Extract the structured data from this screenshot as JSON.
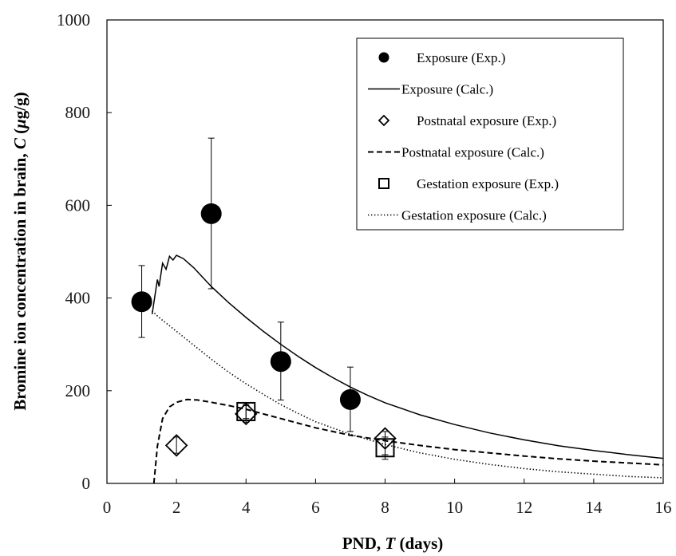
{
  "chart_data": {
    "type": "scatter",
    "xlabel": {
      "prefix": "PND, ",
      "var": "T",
      "suffix": " (days)"
    },
    "ylabel": {
      "prefix": "Bromine ion concentration in brain, ",
      "var": "C",
      "unit_open": " (",
      "unit_mu": "μ",
      "unit_rest": "g/g)"
    },
    "xlim": [
      0,
      16
    ],
    "ylim": [
      0,
      1000
    ],
    "x_ticks": [
      "0",
      "2",
      "4",
      "6",
      "8",
      "10",
      "12",
      "14",
      "16"
    ],
    "y_ticks": [
      "0",
      "200",
      "400",
      "600",
      "800",
      "1000"
    ],
    "x_tick_values": [
      0,
      2,
      4,
      6,
      8,
      10,
      12,
      14,
      16
    ],
    "y_tick_values": [
      0,
      200,
      400,
      600,
      800,
      1000
    ],
    "grid": false,
    "legend_position": "top-right",
    "series": [
      {
        "name": "Exposure (Exp.)",
        "kind": "points",
        "marker": "filled-circle",
        "points": [
          {
            "x": 1,
            "y": 392,
            "err_low": 315,
            "err_high": 470
          },
          {
            "x": 3,
            "y": 582,
            "err_low": 420,
            "err_high": 745
          },
          {
            "x": 5,
            "y": 263,
            "err_low": 180,
            "err_high": 348
          },
          {
            "x": 7,
            "y": 181,
            "err_low": 112,
            "err_high": 251
          }
        ]
      },
      {
        "name": "Exposure (Calc.)",
        "kind": "line",
        "style": "solid",
        "points": [
          [
            1.3,
            365
          ],
          [
            1.45,
            440
          ],
          [
            1.5,
            425
          ],
          [
            1.6,
            475
          ],
          [
            1.7,
            462
          ],
          [
            1.8,
            490
          ],
          [
            1.9,
            482
          ],
          [
            2.0,
            492
          ],
          [
            2.2,
            485
          ],
          [
            2.5,
            465
          ],
          [
            3,
            425
          ],
          [
            3.5,
            390
          ],
          [
            4,
            358
          ],
          [
            4.5,
            328
          ],
          [
            5,
            300
          ],
          [
            5.5,
            274
          ],
          [
            6,
            250
          ],
          [
            6.5,
            228
          ],
          [
            7,
            208
          ],
          [
            7.5,
            190
          ],
          [
            8,
            174
          ],
          [
            9,
            148
          ],
          [
            10,
            127
          ],
          [
            11,
            109
          ],
          [
            12,
            94
          ],
          [
            13,
            81
          ],
          [
            14,
            71
          ],
          [
            15,
            62
          ],
          [
            16,
            54
          ]
        ]
      },
      {
        "name": "Postnatal exposure (Exp.)",
        "kind": "points",
        "marker": "open-diamond",
        "points": [
          {
            "x": 2,
            "y": 82,
            "err_low": 65,
            "err_high": 100
          },
          {
            "x": 4,
            "y": 150,
            "err_low": 132,
            "err_high": 168
          },
          {
            "x": 8,
            "y": 97,
            "err_low": 62,
            "err_high": 112
          }
        ]
      },
      {
        "name": "Postnatal exposure (Calc.)",
        "kind": "line",
        "style": "dashed",
        "points": [
          [
            1.35,
            0
          ],
          [
            1.45,
            80
          ],
          [
            1.6,
            140
          ],
          [
            1.8,
            165
          ],
          [
            2.0,
            175
          ],
          [
            2.3,
            181
          ],
          [
            2.6,
            180
          ],
          [
            3,
            175
          ],
          [
            3.5,
            168
          ],
          [
            4,
            160
          ],
          [
            4.5,
            150
          ],
          [
            5,
            140
          ],
          [
            5.5,
            130
          ],
          [
            6,
            120
          ],
          [
            7,
            104
          ],
          [
            8,
            92
          ],
          [
            9,
            82
          ],
          [
            10,
            73
          ],
          [
            11,
            66
          ],
          [
            12,
            59
          ],
          [
            13,
            53
          ],
          [
            14,
            48
          ],
          [
            15,
            44
          ],
          [
            16,
            40
          ]
        ]
      },
      {
        "name": "Gestation exposure (Exp.)",
        "kind": "points",
        "marker": "open-square",
        "points": [
          {
            "x": 4,
            "y": 155,
            "err_low": 140,
            "err_high": 170
          },
          {
            "x": 8,
            "y": 77,
            "err_low": 52,
            "err_high": 100
          }
        ]
      },
      {
        "name": "Gestation exposure (Calc.)",
        "kind": "line",
        "style": "dotted",
        "points": [
          [
            1.3,
            372
          ],
          [
            1.5,
            358
          ],
          [
            2,
            328
          ],
          [
            2.5,
            298
          ],
          [
            3,
            268
          ],
          [
            3.5,
            240
          ],
          [
            4,
            215
          ],
          [
            4.5,
            192
          ],
          [
            5,
            170
          ],
          [
            5.5,
            151
          ],
          [
            6,
            133
          ],
          [
            7,
            106
          ],
          [
            8,
            84
          ],
          [
            9,
            66
          ],
          [
            10,
            52
          ],
          [
            11,
            41
          ],
          [
            12,
            32
          ],
          [
            13,
            25
          ],
          [
            14,
            20
          ],
          [
            15,
            15
          ],
          [
            16,
            12
          ]
        ]
      }
    ]
  }
}
